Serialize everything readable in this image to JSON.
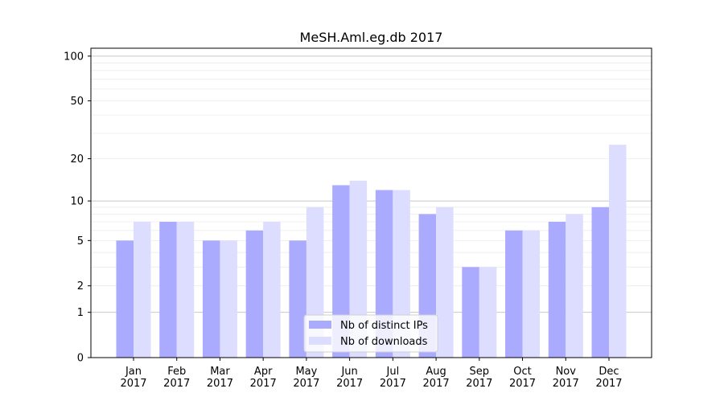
{
  "chart_data": {
    "type": "bar",
    "title": "MeSH.Aml.eg.db 2017",
    "xlabel": "",
    "ylabel": "",
    "yscale": "log10(1+v)",
    "ylim": [
      0,
      113
    ],
    "yticks": [
      0,
      1,
      2,
      5,
      10,
      20,
      50,
      100
    ],
    "grid": true,
    "legend_position": "bottom-center",
    "categories": [
      "Jan\n2017",
      "Feb\n2017",
      "Mar\n2017",
      "Apr\n2017",
      "May\n2017",
      "Jun\n2017",
      "Jul\n2017",
      "Aug\n2017",
      "Sep\n2017",
      "Oct\n2017",
      "Nov\n2017",
      "Dec\n2017"
    ],
    "series": [
      {
        "name": "Nb of distinct IPs",
        "color": "#aaaaff",
        "values": [
          5,
          7,
          5,
          6,
          5,
          13,
          12,
          8,
          3,
          6,
          7,
          9
        ]
      },
      {
        "name": "Nb of downloads",
        "color": "#ddddff",
        "values": [
          7,
          7,
          5,
          7,
          9,
          14,
          12,
          9,
          3,
          6,
          8,
          25
        ]
      }
    ]
  }
}
